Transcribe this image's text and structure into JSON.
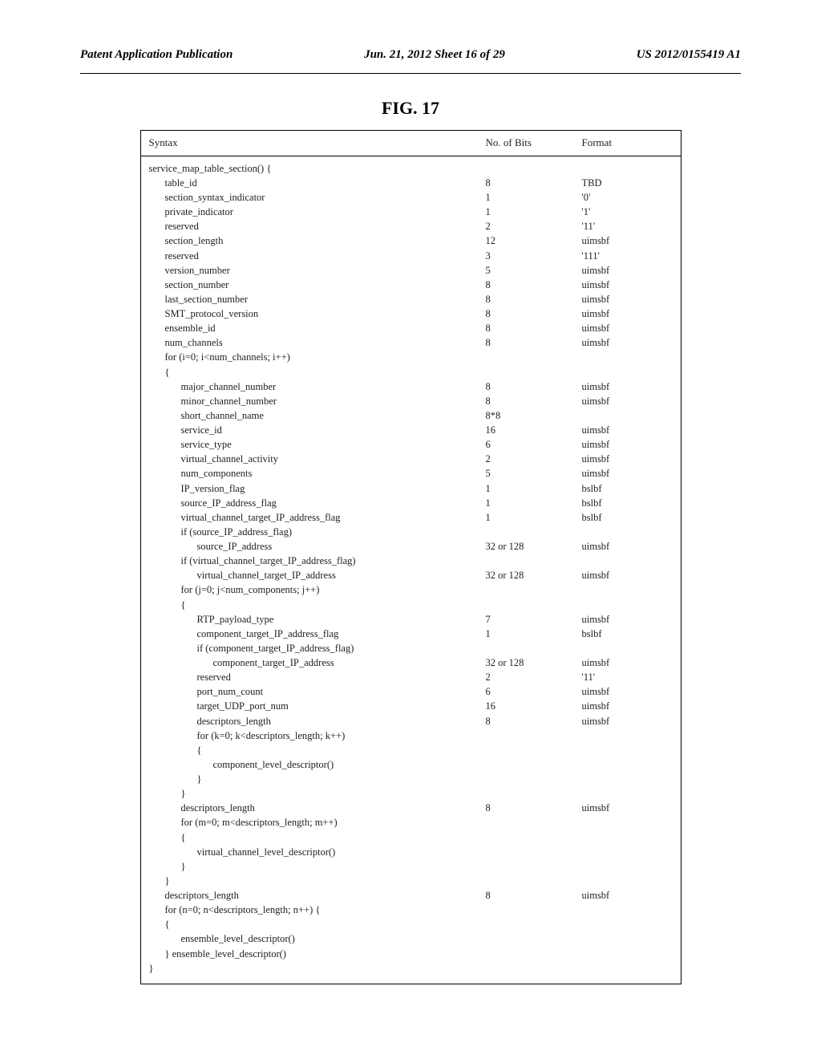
{
  "header": {
    "left": "Patent Application Publication",
    "mid": "Jun. 21, 2012  Sheet 16 of 29",
    "right": "US 2012/0155419 A1"
  },
  "figure": {
    "title": "FIG. 17"
  },
  "table": {
    "columns": {
      "syntax": "Syntax",
      "bits": "No. of Bits",
      "format": "Format"
    },
    "rows": [
      {
        "indent": 0,
        "syntax": "service_map_table_section() {",
        "bits": "",
        "format": ""
      },
      {
        "indent": 1,
        "syntax": "table_id",
        "bits": "8",
        "format": "TBD"
      },
      {
        "indent": 1,
        "syntax": "section_syntax_indicator",
        "bits": "1",
        "format": "'0'"
      },
      {
        "indent": 1,
        "syntax": "private_indicator",
        "bits": "1",
        "format": "'1'"
      },
      {
        "indent": 1,
        "syntax": "reserved",
        "bits": "2",
        "format": "'11'"
      },
      {
        "indent": 1,
        "syntax": "section_length",
        "bits": "12",
        "format": "uimsbf"
      },
      {
        "indent": 1,
        "syntax": "reserved",
        "bits": "3",
        "format": "'111'"
      },
      {
        "indent": 1,
        "syntax": "version_number",
        "bits": "5",
        "format": "uimsbf"
      },
      {
        "indent": 1,
        "syntax": "section_number",
        "bits": "8",
        "format": "uimsbf"
      },
      {
        "indent": 1,
        "syntax": "last_section_number",
        "bits": "8",
        "format": "uimsbf"
      },
      {
        "indent": 1,
        "syntax": "SMT_protocol_version",
        "bits": "8",
        "format": "uimsbf"
      },
      {
        "indent": 1,
        "syntax": "ensemble_id",
        "bits": "8",
        "format": "uimsbf"
      },
      {
        "indent": 1,
        "syntax": "num_channels",
        "bits": "8",
        "format": "uimsbf"
      },
      {
        "indent": 1,
        "syntax": "for (i=0; i<num_channels; i++)",
        "bits": "",
        "format": ""
      },
      {
        "indent": 1,
        "syntax": "{",
        "bits": "",
        "format": ""
      },
      {
        "indent": 2,
        "syntax": "major_channel_number",
        "bits": "8",
        "format": "uimsbf"
      },
      {
        "indent": 2,
        "syntax": "minor_channel_number",
        "bits": "8",
        "format": "uimsbf"
      },
      {
        "indent": 2,
        "syntax": "short_channel_name",
        "bits": "8*8",
        "format": ""
      },
      {
        "indent": 2,
        "syntax": "service_id",
        "bits": "16",
        "format": "uimsbf"
      },
      {
        "indent": 2,
        "syntax": "service_type",
        "bits": "6",
        "format": "uimsbf"
      },
      {
        "indent": 2,
        "syntax": "virtual_channel_activity",
        "bits": "2",
        "format": "uimsbf"
      },
      {
        "indent": 2,
        "syntax": "num_components",
        "bits": "5",
        "format": "uimsbf"
      },
      {
        "indent": 2,
        "syntax": "IP_version_flag",
        "bits": "1",
        "format": "bslbf"
      },
      {
        "indent": 2,
        "syntax": "source_IP_address_flag",
        "bits": "1",
        "format": "bslbf"
      },
      {
        "indent": 2,
        "syntax": "virtual_channel_target_IP_address_flag",
        "bits": "1",
        "format": "bslbf"
      },
      {
        "indent": 2,
        "syntax": "if (source_IP_address_flag)",
        "bits": "",
        "format": ""
      },
      {
        "indent": 3,
        "syntax": "source_IP_address",
        "bits": "32 or 128",
        "format": "uimsbf"
      },
      {
        "indent": 2,
        "syntax": "if (virtual_channel_target_IP_address_flag)",
        "bits": "",
        "format": ""
      },
      {
        "indent": 3,
        "syntax": "virtual_channel_target_IP_address",
        "bits": "32 or 128",
        "format": "uimsbf"
      },
      {
        "indent": 2,
        "syntax": "for (j=0; j<num_components; j++)",
        "bits": "",
        "format": ""
      },
      {
        "indent": 2,
        "syntax": "{",
        "bits": "",
        "format": ""
      },
      {
        "indent": 3,
        "syntax": "RTP_payload_type",
        "bits": "7",
        "format": "uimsbf"
      },
      {
        "indent": 3,
        "syntax": "component_target_IP_address_flag",
        "bits": "1",
        "format": "bslbf"
      },
      {
        "indent": 3,
        "syntax": "if (component_target_IP_address_flag)",
        "bits": "",
        "format": ""
      },
      {
        "indent": 4,
        "syntax": "component_target_IP_address",
        "bits": "32 or 128",
        "format": "uimsbf"
      },
      {
        "indent": 3,
        "syntax": "reserved",
        "bits": "2",
        "format": "'11'"
      },
      {
        "indent": 3,
        "syntax": "port_num_count",
        "bits": "6",
        "format": "uimsbf"
      },
      {
        "indent": 3,
        "syntax": "target_UDP_port_num",
        "bits": "16",
        "format": "uimsbf"
      },
      {
        "indent": 3,
        "syntax": "descriptors_length",
        "bits": "8",
        "format": "uimsbf"
      },
      {
        "indent": 3,
        "syntax": "for (k=0; k<descriptors_length; k++)",
        "bits": "",
        "format": ""
      },
      {
        "indent": 3,
        "syntax": "{",
        "bits": "",
        "format": ""
      },
      {
        "indent": 4,
        "syntax": "component_level_descriptor()",
        "bits": "",
        "format": ""
      },
      {
        "indent": 3,
        "syntax": "}",
        "bits": "",
        "format": ""
      },
      {
        "indent": 2,
        "syntax": "}",
        "bits": "",
        "format": ""
      },
      {
        "indent": 2,
        "syntax": "descriptors_length",
        "bits": "8",
        "format": "uimsbf"
      },
      {
        "indent": 2,
        "syntax": "for (m=0; m<descriptors_length; m++)",
        "bits": "",
        "format": ""
      },
      {
        "indent": 2,
        "syntax": "{",
        "bits": "",
        "format": ""
      },
      {
        "indent": 3,
        "syntax": "virtual_channel_level_descriptor()",
        "bits": "",
        "format": ""
      },
      {
        "indent": 2,
        "syntax": "}",
        "bits": "",
        "format": ""
      },
      {
        "indent": 1,
        "syntax": "}",
        "bits": "",
        "format": ""
      },
      {
        "indent": 1,
        "syntax": "descriptors_length",
        "bits": "8",
        "format": "uimsbf"
      },
      {
        "indent": 1,
        "syntax": "for (n=0; n<descriptors_length; n++) {",
        "bits": "",
        "format": ""
      },
      {
        "indent": 1,
        "syntax": "{",
        "bits": "",
        "format": ""
      },
      {
        "indent": 2,
        "syntax": "ensemble_level_descriptor()",
        "bits": "",
        "format": ""
      },
      {
        "indent": 1,
        "syntax": "} ensemble_level_descriptor()",
        "bits": "",
        "format": ""
      },
      {
        "indent": 0,
        "syntax": "}",
        "bits": "",
        "format": ""
      }
    ]
  }
}
